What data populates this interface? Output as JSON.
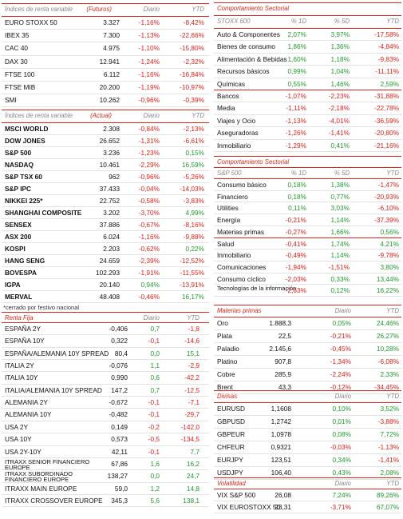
{
  "left": [
    {
      "columns": [
        "Índices de renta variable",
        "(Futuros)",
        "Diario",
        "YTD"
      ],
      "rows": [
        [
          "EURO STOXX 50",
          "3.327",
          "-1,16%",
          "-8,42%"
        ],
        [
          "IBEX 35",
          "7.300",
          "-1,13%",
          "-22,66%"
        ],
        [
          "CAC 40",
          "4.975",
          "-1,10%",
          "-15,80%"
        ],
        [
          "DAX 30",
          "12.941",
          "-1,24%",
          "-2,32%"
        ],
        [
          "FTSE 100",
          "6.112",
          "-1,16%",
          "-16,84%"
        ],
        [
          "FTSE MIB",
          "20.200",
          "-1,19%",
          "-10,97%"
        ],
        [
          "SMI",
          "10.262",
          "-0,96%",
          "-0,39%"
        ]
      ]
    },
    {
      "columns": [
        "Índices de renta variable",
        "(Actual)",
        "Diario",
        "YTD"
      ],
      "rows": [
        [
          "MSCI WORLD",
          "2.308",
          "-0,84%",
          "-2,13%"
        ],
        [
          "DOW JONES",
          "26.652",
          "-1,31%",
          "-6,61%"
        ],
        [
          "S&P 500",
          "3.236",
          "-1,23%",
          "0,15%"
        ],
        [
          "NASDAQ",
          "10.461",
          "-2,29%",
          "16,59%"
        ],
        [
          "S&P TSX 60",
          "962",
          "-0,96%",
          "-5,26%"
        ],
        [
          "S&P IPC",
          "37.433",
          "-0,04%",
          "-14,03%"
        ],
        [
          "NIKKEI 225*",
          "22.752",
          "-0,58%",
          "-3,83%"
        ],
        [
          "SHANGHAI COMPOSITE",
          "3.202",
          "-3,70%",
          "4,99%"
        ],
        [
          "SENSEX",
          "37.886",
          "-0,67%",
          "-8,16%"
        ],
        [
          "ASX 200",
          "6.024",
          "-1,16%",
          "-9,88%"
        ],
        [
          "KOSPI",
          "2.203",
          "-0,62%",
          "0,22%"
        ],
        [
          "HANG SENG",
          "24.659",
          "-2,39%",
          "-12,52%"
        ],
        [
          "BOVESPA",
          "102.293",
          "-1,91%",
          "-11,55%"
        ],
        [
          "IGPA",
          "20.140",
          "0,94%",
          "-13,91%"
        ],
        [
          "MERVAL",
          "48.408",
          "-0,46%",
          "16,17%"
        ]
      ],
      "note": "*cerrado por festivo nacional"
    },
    {
      "columns": [
        "Renta Fija",
        "Diario",
        "YTD"
      ],
      "rows": [
        [
          "ESPAÑA 2Y",
          "-0,406",
          "0,7",
          "-1,8"
        ],
        [
          "ESPAÑA 10Y",
          "0,322",
          "-0,1",
          "-14,6"
        ],
        [
          "ESPAÑA/ALEMANIA 10Y SPREAD",
          "80,4",
          "0,0",
          "15,1"
        ],
        [
          "ITALIA 2Y",
          "-0,076",
          "1,1",
          "-2,9"
        ],
        [
          "ITALIA 10Y",
          "0,990",
          "0,6",
          "-42,2"
        ],
        [
          "ITALIA/ALEMANIA 10Y SPREAD",
          "147,2",
          "0,7",
          "-12,5"
        ],
        [
          "ALEMANIA 2Y",
          "-0,672",
          "-0,1",
          "-7,1"
        ],
        [
          "ALEMANIA 10Y",
          "-0,482",
          "-0,1",
          "-29,7"
        ],
        [
          "USA 2Y",
          "0,149",
          "-0,2",
          "-142,0"
        ],
        [
          "USA 10Y",
          "0,573",
          "-0,5",
          "-134,5"
        ],
        [
          "USA 2Y-10Y",
          "42,11",
          "-0,1",
          "7,7"
        ],
        [
          "ITRAXX SENIOR FINANCIERO EUROPE",
          "67,86",
          "1,6",
          "16,2"
        ],
        [
          "ITRAXX SUBORDINADO FINANCIERO EUROPE",
          "138,27",
          "0,0",
          "24,7"
        ],
        [
          "ITRAXX MAIN EUROPE",
          "59,0",
          "1,2",
          "14,8"
        ],
        [
          "ITRAXX CROSSOVER EUROPE",
          "345,3",
          "5,6",
          "138,1"
        ]
      ]
    }
  ],
  "right": [
    {
      "title": "Comportamiento Sectorial",
      "columns": [
        "STOXX 600",
        "% 1D",
        "% 5D",
        "YTD"
      ],
      "rows": [
        [
          "Auto & Componentes",
          "2,07%",
          "3,97%",
          "-17,58%"
        ],
        [
          "Bienes de consumo",
          "1,86%",
          "1,36%",
          "-4,84%"
        ],
        [
          "Alimentación & Bebidas",
          "1,60%",
          "1,18%",
          "-9,83%"
        ],
        [
          "Recursos básicos",
          "0,99%",
          "1,04%",
          "-11,11%"
        ],
        [
          "Químicas",
          "0,55%",
          "1,46%",
          "2,59%"
        ],
        [
          "Bancos",
          "-1,07%",
          "-2,23%",
          "-31,88%"
        ],
        [
          "Media",
          "-1,11%",
          "-2,18%",
          "-22,78%"
        ],
        [
          "Viajes y Ocio",
          "-1,13%",
          "-4,01%",
          "-36,59%"
        ],
        [
          "Aseguradoras",
          "-1,26%",
          "-1,41%",
          "-20,80%"
        ],
        [
          "Inmobiliario",
          "-1,29%",
          "0,41%",
          "-21,16%"
        ]
      ]
    },
    {
      "title": "Comportamiento Sectorial",
      "columns": [
        "S&P 500",
        "% 1D",
        "% 5D",
        "YTD"
      ],
      "rows": [
        [
          "Consumo básico",
          "0,18%",
          "1,38%",
          "-1,47%"
        ],
        [
          "Financiero",
          "0,18%",
          "0,77%",
          "-20,93%"
        ],
        [
          "Utilities",
          "0,11%",
          "3,03%",
          "-6,10%"
        ],
        [
          "Energía",
          "-0,21%",
          "1,14%",
          "-37,39%"
        ],
        [
          "Materias primas",
          "-0,27%",
          "1,66%",
          "0,56%"
        ],
        [
          "Salud",
          "-0,41%",
          "1,74%",
          "4,21%"
        ],
        [
          "Inmobiliario",
          "-0,49%",
          "1,14%",
          "-9,78%"
        ],
        [
          "Comunicaciones",
          "-1,94%",
          "-1,51%",
          "3,80%"
        ],
        [
          "Consumo cíclico",
          "-2,03%",
          "0,33%",
          "13,44%"
        ],
        [
          "Tecnologías de la información",
          "-2,63%",
          "0,12%",
          "16,22%"
        ]
      ]
    },
    {
      "columns": [
        "Materias primas",
        "Diario",
        "YTD"
      ],
      "rows": [
        [
          "Oro",
          "1.888,3",
          "0,05%",
          "24,46%"
        ],
        [
          "Plata",
          "22,5",
          "-0,21%",
          "26,27%"
        ],
        [
          "Paladio",
          "2.145,6",
          "-0,45%",
          "10,28%"
        ],
        [
          "Platino",
          "907,8",
          "-1,34%",
          "-6,08%"
        ],
        [
          "Cobre",
          "285,9",
          "-2,24%",
          "2,33%"
        ],
        [
          "Brent",
          "43,3",
          "-0,12%",
          "-34,45%"
        ]
      ]
    },
    {
      "columns": [
        "Divisas",
        "Diario",
        "YTD"
      ],
      "rows": [
        [
          "EURUSD",
          "1,1608",
          "0,10%",
          "3,52%"
        ],
        [
          "GBPUSD",
          "1,2742",
          "0,01%",
          "-3,88%"
        ],
        [
          "GBPEUR",
          "1,0978",
          "0,08%",
          "7,72%"
        ],
        [
          "CHFEUR",
          "0,9321",
          "-0,03%",
          "-1,13%"
        ],
        [
          "EURJPY",
          "123,51",
          "0,34%",
          "-1,41%"
        ],
        [
          "USDJPY",
          "106,40",
          "0,43%",
          "2,08%"
        ]
      ]
    },
    {
      "columns": [
        "Volatilidad",
        "Diario",
        "YTD"
      ],
      "rows": [
        [
          "VIX S&P 500",
          "26,08",
          "7,24%",
          "89,26%"
        ],
        [
          "VIX EUROSTOXX 50",
          "23,31",
          "-3,71%",
          "67,07%"
        ]
      ]
    }
  ]
}
